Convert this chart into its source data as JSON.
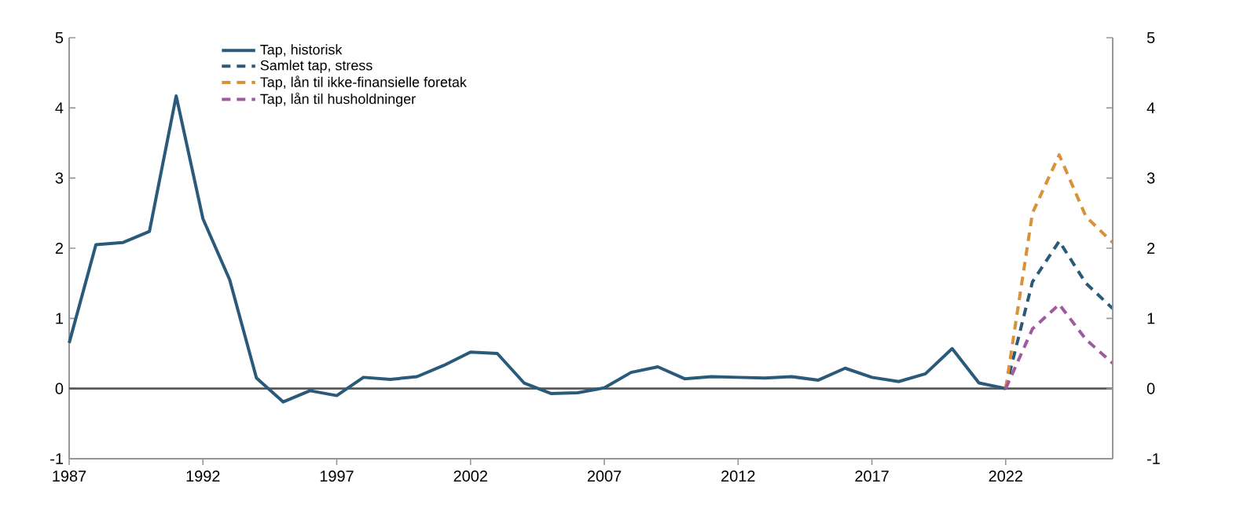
{
  "chart_data": {
    "type": "line",
    "xlim": [
      1987,
      2026
    ],
    "xticks": [
      1987,
      1992,
      1997,
      2002,
      2007,
      2012,
      2017,
      2022
    ],
    "ylim": [
      -1,
      5
    ],
    "yticks": [
      -1,
      0,
      1,
      2,
      3,
      4,
      5
    ],
    "y2lim": [
      -1,
      5
    ],
    "y2ticks": [
      -1,
      0,
      1,
      2,
      3,
      4,
      5
    ],
    "grid": false,
    "legend": "top left",
    "ref_lines": [
      {
        "axis": "y",
        "value": 0,
        "color": "#595959"
      }
    ],
    "series": [
      {
        "name": "Tap, historisk",
        "color": "#2a5a7a",
        "line_style": "solid",
        "x": [
          1987,
          1988,
          1989,
          1990,
          1991,
          1992,
          1993,
          1994,
          1995,
          1996,
          1997,
          1998,
          1999,
          2000,
          2001,
          2002,
          2003,
          2004,
          2005,
          2006,
          2007,
          2008,
          2009,
          2010,
          2011,
          2012,
          2013,
          2014,
          2015,
          2016,
          2017,
          2018,
          2019,
          2020,
          2021,
          2022
        ],
        "values": [
          0.65,
          2.05,
          2.08,
          2.24,
          4.17,
          2.42,
          1.55,
          0.15,
          -0.19,
          -0.03,
          -0.1,
          0.16,
          0.13,
          0.17,
          0.33,
          0.52,
          0.5,
          0.08,
          -0.07,
          -0.06,
          0.01,
          0.23,
          0.31,
          0.14,
          0.17,
          0.16,
          0.15,
          0.17,
          0.12,
          0.29,
          0.16,
          0.1,
          0.21,
          0.57,
          0.08,
          0.0
        ]
      },
      {
        "name": "Samlet tap, stress",
        "color": "#2a5a7a",
        "line_style": "dashed",
        "x": [
          2022,
          2023,
          2024,
          2025,
          2026
        ],
        "values": [
          0.0,
          1.52,
          2.1,
          1.5,
          1.14
        ]
      },
      {
        "name": "Tap, lån til ikke-finansielle foretak",
        "color": "#d9913a",
        "line_style": "dashed",
        "x": [
          2022,
          2023,
          2024,
          2025,
          2026
        ],
        "values": [
          0.0,
          2.5,
          3.33,
          2.45,
          2.08
        ]
      },
      {
        "name": "Tap, lån til husholdninger",
        "color": "#a05a9e",
        "line_style": "dashed",
        "x": [
          2022,
          2023,
          2024,
          2025,
          2026
        ],
        "values": [
          0.0,
          0.85,
          1.2,
          0.7,
          0.36
        ]
      }
    ]
  }
}
